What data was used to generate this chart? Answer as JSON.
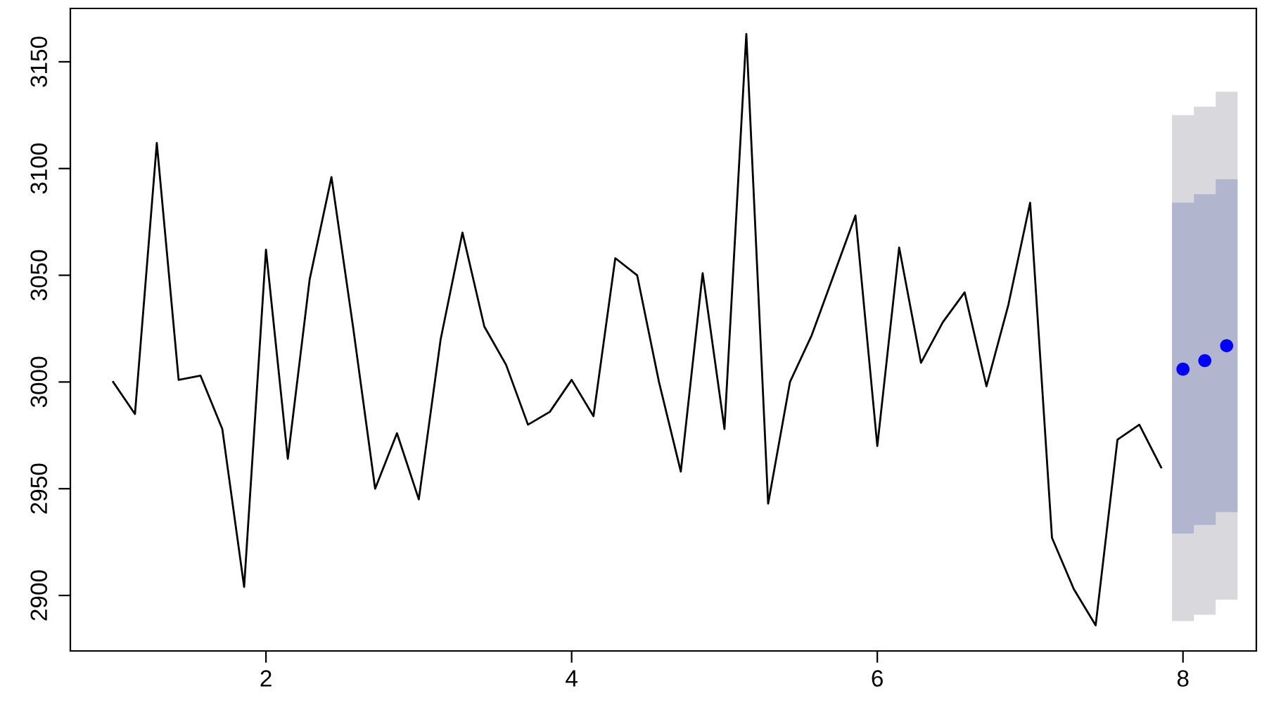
{
  "chart_data": {
    "type": "line",
    "xlim": [
      0.72,
      8.48
    ],
    "ylim": [
      2874,
      3175
    ],
    "xticks": [
      2,
      4,
      6,
      8
    ],
    "yticks": [
      2900,
      2950,
      3000,
      3050,
      3100,
      3150
    ],
    "grid": false,
    "series": [
      {
        "color": "#000000",
        "x": [
          1,
          1.1429,
          1.2857,
          1.4286,
          1.5714,
          1.7143,
          1.8571,
          2,
          2.1429,
          2.2857,
          2.4286,
          2.5714,
          2.7143,
          2.8571,
          3,
          3.1429,
          3.2857,
          3.4286,
          3.5714,
          3.7143,
          3.8571,
          4,
          4.1429,
          4.2857,
          4.4286,
          4.5714,
          4.7143,
          4.8571,
          5,
          5.1429,
          5.2857,
          5.4286,
          5.5714,
          5.7143,
          5.8571,
          6,
          6.1429,
          6.2857,
          6.4286,
          6.5714,
          6.7143,
          6.8571,
          7,
          7.1429,
          7.2857,
          7.4286,
          7.5714,
          7.7143,
          7.8571
        ],
        "values": [
          3000,
          2985,
          3112,
          3001,
          3003,
          2978,
          2904,
          3062,
          2964,
          3048,
          3096,
          3025,
          2950,
          2976,
          2945,
          3020,
          3070,
          3026,
          3008,
          2980,
          2986,
          3001,
          2984,
          3058,
          3050,
          3000,
          2958,
          3051,
          2978,
          3163,
          2943,
          3000,
          3022,
          3050,
          3078,
          2970,
          3063,
          3009,
          3028,
          3042,
          2998,
          3036,
          3084,
          2927,
          2903,
          2886,
          2973,
          2980,
          2960
        ]
      },
      {
        "type": "area",
        "color": "#d8d8dd",
        "x": [
          7.9286,
          8.0714,
          8.0714,
          8.2143,
          8.2143,
          8.3571
        ],
        "values": [
          null,
          null,
          null,
          null,
          null,
          null
        ],
        "lower": [
          2888,
          2888,
          2891,
          2891,
          2898,
          2898
        ],
        "upper": [
          3125,
          3125,
          3129,
          3129,
          3136,
          3136
        ]
      },
      {
        "type": "area",
        "color": "#b1b5ce",
        "x": [
          7.9286,
          8.0714,
          8.0714,
          8.2143,
          8.2143,
          8.3571
        ],
        "values": [
          null,
          null,
          null,
          null,
          null,
          null
        ],
        "lower": [
          2929,
          2929,
          2933,
          2933,
          2939,
          2939
        ],
        "upper": [
          3084,
          3084,
          3088,
          3088,
          3095,
          3095
        ]
      },
      {
        "type": "scatter",
        "color": "#0000ff",
        "x": [
          8,
          8.1429,
          8.2857
        ],
        "values": [
          3006,
          3010,
          3017
        ]
      }
    ]
  }
}
